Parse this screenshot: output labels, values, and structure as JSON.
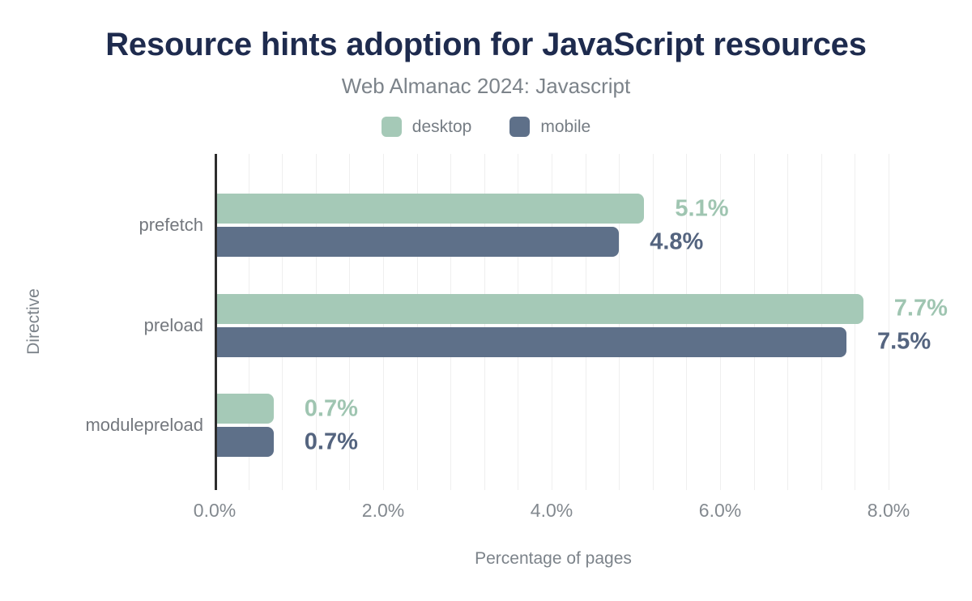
{
  "chart_data": {
    "type": "bar",
    "orientation": "horizontal",
    "title": "Resource hints adoption for JavaScript resources",
    "subtitle": "Web Almanac 2024: Javascript",
    "xlabel": "Percentage of pages",
    "ylabel": "Directive",
    "categories": [
      "prefetch",
      "preload",
      "modulepreload"
    ],
    "series": [
      {
        "name": "desktop",
        "color": "#a5c9b7",
        "label_color": "#9fc5b1",
        "values": [
          5.1,
          7.7,
          0.7
        ],
        "value_labels": [
          "5.1%",
          "7.7%",
          "0.7%"
        ]
      },
      {
        "name": "mobile",
        "color": "#5e7089",
        "label_color": "#54647f",
        "values": [
          4.8,
          7.5,
          0.7
        ],
        "value_labels": [
          "4.8%",
          "7.5%",
          "0.7%"
        ]
      }
    ],
    "x_ticks": [
      {
        "value": 0,
        "label": "0.0%"
      },
      {
        "value": 2,
        "label": "2.0%"
      },
      {
        "value": 4,
        "label": "4.0%"
      },
      {
        "value": 6,
        "label": "6.0%"
      },
      {
        "value": 8,
        "label": "8.0%"
      }
    ],
    "xlim": [
      0,
      8.04
    ],
    "grid": true,
    "grid_step": 0.4,
    "legend_position": "top"
  },
  "palette": {
    "background": "#ffffff",
    "title": "#1e2b4e",
    "subtitle": "#7c838a",
    "legend_text": "#767d84",
    "axis_title": "#7c838a",
    "tick_label": "#83898f",
    "category_label": "#74787e",
    "gridline": "#efefef",
    "axis_line": "#2d2d2d"
  }
}
